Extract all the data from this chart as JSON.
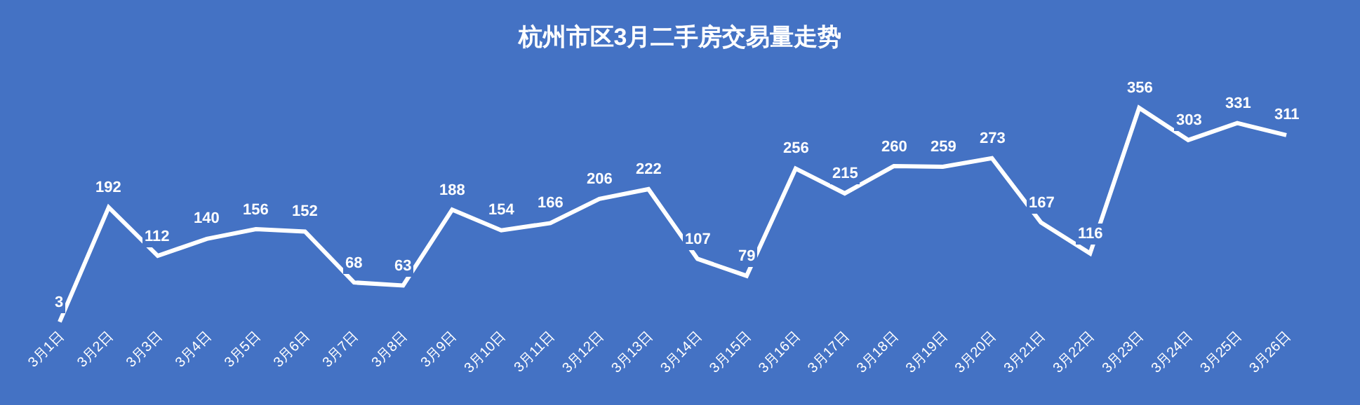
{
  "chart_data": {
    "type": "line",
    "title": "杭州市区3月二手房交易量走势",
    "categories": [
      "3月1日",
      "3月2日",
      "3月3日",
      "3月4日",
      "3月5日",
      "3月6日",
      "3月7日",
      "3月8日",
      "3月9日",
      "3月10日",
      "3月11日",
      "3月12日",
      "3月13日",
      "3月14日",
      "3月15日",
      "3月16日",
      "3月17日",
      "3月18日",
      "3月19日",
      "3月20日",
      "3月21日",
      "3月22日",
      "3月23日",
      "3月24日",
      "3月25日",
      "3月26日"
    ],
    "series": [
      {
        "color": "#ffffff",
        "values": [
          3,
          192,
          112,
          140,
          156,
          152,
          68,
          63,
          188,
          154,
          166,
          206,
          222,
          107,
          79,
          256,
          215,
          260,
          259,
          273,
          167,
          116,
          356,
          303,
          331,
          311
        ]
      }
    ],
    "data_labels": true,
    "marker": "none",
    "line_style": "solid",
    "grid": false,
    "tick_labels": "x"
  }
}
